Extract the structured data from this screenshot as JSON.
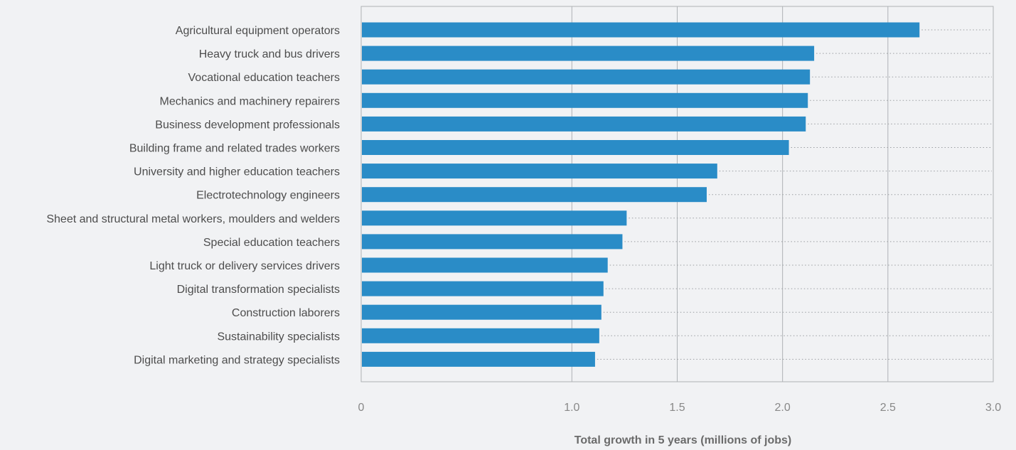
{
  "chart_data": {
    "type": "bar",
    "orientation": "horizontal",
    "title": "",
    "xlabel": "Total growth in 5 years (millions of jobs)",
    "ylabel": "",
    "xlim": [
      0,
      3.0
    ],
    "xticks": [
      "0",
      "1.0",
      "1.5",
      "2.0",
      "2.5",
      "3.0"
    ],
    "xtick_values": [
      0,
      1.0,
      1.5,
      2.0,
      2.5,
      3.0
    ],
    "categories": [
      "Agricultural equipment operators",
      "Heavy truck and bus drivers",
      "Vocational education teachers",
      "Mechanics and machinery repairers",
      "Business development professionals",
      "Building frame and related trades workers",
      "University and higher education teachers",
      "Electrotechnology engineers",
      "Sheet and structural metal workers, moulders and welders",
      "Special education teachers",
      "Light truck or delivery services drivers",
      "Digital transformation specialists",
      "Construction laborers",
      "Sustainability specialists",
      "Digital marketing and strategy specialists"
    ],
    "values": [
      2.65,
      2.15,
      2.13,
      2.12,
      2.11,
      2.03,
      1.69,
      1.64,
      1.26,
      1.24,
      1.17,
      1.15,
      1.14,
      1.13,
      1.11
    ],
    "grid": true,
    "legend": "none",
    "colors": {
      "bar": "#2a8cc7",
      "background": "#f1f2f4",
      "frame": "#aeb1b5",
      "label": "#4d4d4d",
      "tick": "#888888",
      "axis_title": "#6b6b6b"
    }
  }
}
